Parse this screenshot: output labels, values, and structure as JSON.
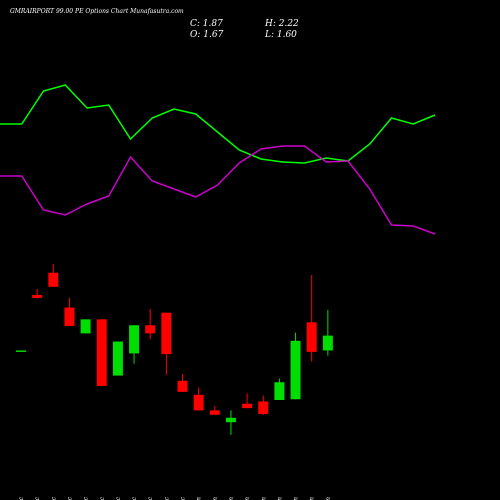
{
  "chart_data": [
    {
      "type": "line",
      "ylim": [
        0,
        100
      ],
      "series": [
        {
          "name": null,
          "color": "#00ff00",
          "values": [
            68,
            68,
            84.5,
            87.5,
            76,
            77.5,
            60.5,
            71,
            75.5,
            73,
            64,
            55,
            50.5,
            49,
            48.5,
            51,
            49.5,
            58,
            71,
            68,
            72.5
          ]
        },
        {
          "name": null,
          "color": "#cc00cc",
          "values": [
            42,
            42,
            25,
            22.5,
            28,
            32,
            51.5,
            39.5,
            35.5,
            31.5,
            37.5,
            48.5,
            55.5,
            57,
            57,
            49,
            49.5,
            35.5,
            17.5,
            17,
            13
          ]
        }
      ]
    },
    {
      "type": "candlestick",
      "title": "GMRAIRPORT 99.00 PE Options Chart Munafasutra.com",
      "ohlc_labels": {
        "close": "C: 1.87",
        "high": "H: 2.22",
        "open": "O: 1.67",
        "low": "L: 1.60"
      },
      "categories": [
        "12 Dec",
        "17 Dec",
        "18 Dec",
        "19 Dec",
        "20 Dec",
        "23 Dec",
        "24 Dec",
        "26 Dec",
        "27 Dec",
        "30 Dec",
        "31 Dec",
        "01 Jan",
        "02 Jan",
        "03 Jan",
        "06 Jan",
        "07 Jan",
        "08 Jan",
        "09 Jan",
        "10 Jan",
        "13 Jan"
      ],
      "open": [
        1.67,
        2.42,
        2.72,
        2.25,
        1.9,
        2.09,
        1.33,
        1.63,
        2.01,
        2.18,
        1.26,
        1.07,
        0.86,
        0.7,
        0.95,
        0.98,
        1.0,
        1.01,
        2.05,
        1.67
      ],
      "high": [
        1.67,
        2.5,
        2.84,
        2.38,
        2.09,
        2.09,
        1.79,
        2.01,
        2.23,
        2.18,
        1.35,
        1.17,
        0.92,
        0.86,
        1.09,
        1.06,
        1.29,
        1.91,
        2.69,
        2.22
      ],
      "low": [
        1.67,
        2.37,
        2.53,
        2.0,
        1.9,
        1.19,
        1.33,
        1.49,
        1.82,
        1.34,
        1.11,
        0.86,
        0.8,
        0.53,
        0.89,
        0.8,
        1.0,
        1.01,
        1.52,
        1.6
      ],
      "close": [
        1.67,
        2.38,
        2.53,
        2.0,
        2.09,
        1.19,
        1.79,
        2.01,
        1.9,
        1.62,
        1.11,
        0.86,
        0.8,
        0.76,
        0.89,
        0.81,
        1.24,
        1.8,
        1.65,
        1.87
      ],
      "up_color": "#00dd00",
      "down_color": "#ff0000",
      "ylim": [
        0,
        3.5
      ]
    }
  ]
}
